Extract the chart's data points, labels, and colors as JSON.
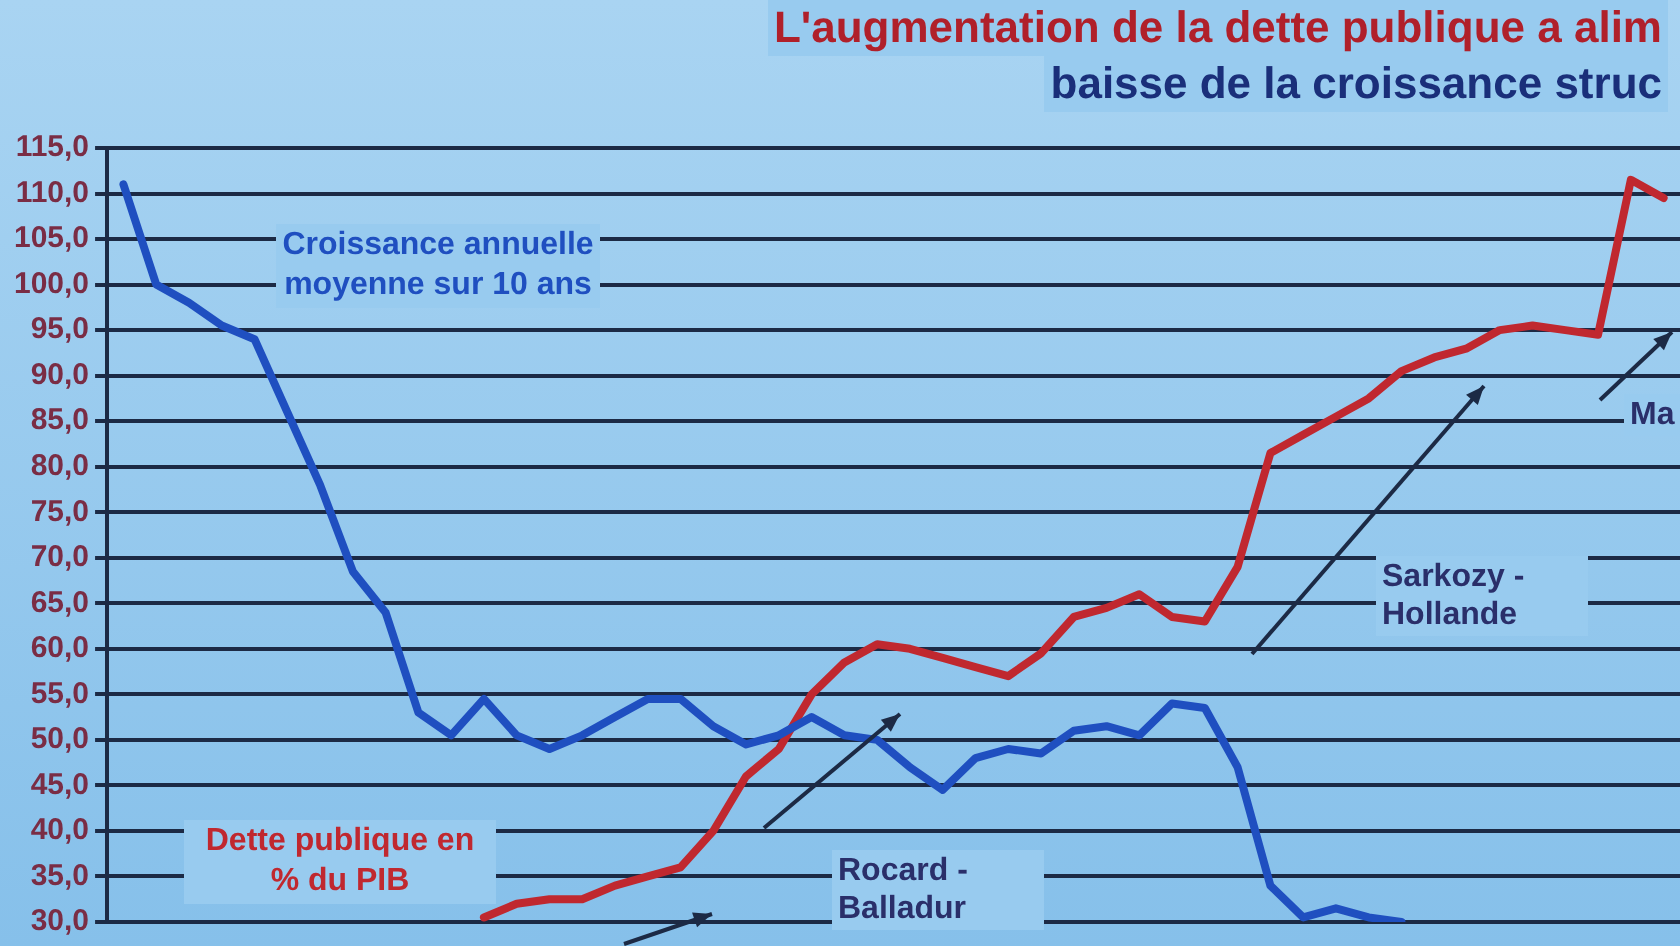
{
  "chart_data": {
    "type": "line",
    "title": "L'augmentation de la dette publique a alim",
    "subtitle": "baisse de la croissance struc",
    "categories": [
      null,
      null,
      null,
      null,
      null,
      null,
      null,
      null,
      null,
      null,
      null,
      null,
      null,
      null,
      null,
      null,
      null,
      null,
      null,
      null,
      null,
      null,
      null,
      null,
      null,
      null,
      null,
      null,
      null,
      null,
      null,
      null,
      null,
      null,
      null,
      null,
      null,
      null,
      null,
      null,
      null,
      null,
      null,
      null,
      null,
      null,
      null,
      null
    ],
    "series": [
      {
        "name": "Croissance annuelle moyenne sur 10 ans",
        "color": "#1f4fc0",
        "values": [
          111,
          100,
          98,
          95.5,
          94,
          86,
          78,
          68.5,
          64,
          53,
          50.5,
          54.5,
          50.5,
          49,
          50.5,
          52.5,
          54.5,
          54.5,
          51.5,
          49.5,
          50.5,
          52.5,
          50.5,
          50,
          47,
          44.5,
          48,
          49,
          48.5,
          51,
          51.5,
          50.5,
          54,
          53.5,
          47,
          34,
          30.5,
          31.5,
          30.5,
          30,
          null,
          null,
          null,
          null,
          null,
          null,
          null,
          null
        ]
      },
      {
        "name": "Dette publique en % du PIB",
        "color": "#c0282f",
        "values": [
          null,
          null,
          null,
          null,
          null,
          null,
          null,
          null,
          null,
          null,
          null,
          30.5,
          32,
          32.5,
          32.5,
          34,
          35,
          36,
          40,
          46,
          49,
          55,
          58.5,
          60.5,
          60,
          59,
          58,
          57,
          59.5,
          63.5,
          64.5,
          66,
          63.5,
          63,
          69,
          81.5,
          83.5,
          85.5,
          87.5,
          90.5,
          92,
          93,
          95,
          95.5,
          95,
          94.5,
          111.5,
          109.5
        ]
      }
    ],
    "ylim": [
      30,
      115
    ],
    "yticks": [
      {
        "value": 30,
        "label": "30,0"
      },
      {
        "value": 35,
        "label": "35,0"
      },
      {
        "value": 40,
        "label": "40,0"
      },
      {
        "value": 45,
        "label": "45,0"
      },
      {
        "value": 50,
        "label": "50,0"
      },
      {
        "value": 55,
        "label": "55,0"
      },
      {
        "value": 60,
        "label": "60,0"
      },
      {
        "value": 65,
        "label": "65,0"
      },
      {
        "value": 70,
        "label": "70,0"
      },
      {
        "value": 75,
        "label": "75,0"
      },
      {
        "value": 80,
        "label": "80,0"
      },
      {
        "value": 85,
        "label": "85,0"
      },
      {
        "value": 90,
        "label": "90,0"
      },
      {
        "value": 95,
        "label": "95,0"
      },
      {
        "value": 100,
        "label": "100,0"
      },
      {
        "value": 105,
        "label": "105,0"
      },
      {
        "value": 110,
        "label": "110,0"
      },
      {
        "value": 115,
        "label": "115,0"
      }
    ],
    "grid": "y",
    "legend": false,
    "marker": "none",
    "annotations": [
      "Rocard - Balladur",
      "Sarkozy - Hollande",
      "Ma"
    ]
  }
}
